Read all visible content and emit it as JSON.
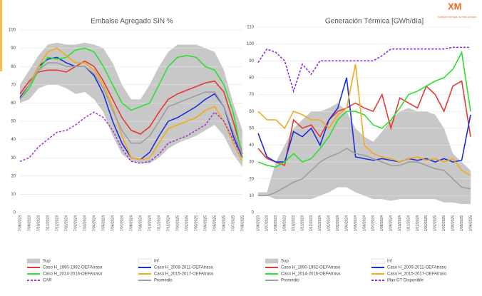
{
  "logo": {
    "name": "XM",
    "tagline": "Somos energía, somos pasión"
  },
  "chart_data": [
    {
      "type": "line",
      "title": "Embalse Agregado SIN %",
      "categories": [
        "7/08/2023",
        "7/09/2023",
        "7/10/2023",
        "7/11/2023",
        "7/12/2023",
        "7/01/2024",
        "7/02/2024",
        "7/03/2024",
        "7/04/2024",
        "7/05/2024",
        "7/06/2024",
        "7/07/2024",
        "7/08/2024",
        "7/09/2024",
        "7/10/2024",
        "7/11/2024",
        "7/12/2024",
        "7/01/2025",
        "7/02/2025",
        "7/03/2025",
        "7/04/2025",
        "7/05/2025",
        "7/06/2025",
        "7/07/2025",
        "7/08/2025"
      ],
      "ylim": [
        0,
        100
      ],
      "yticks": [
        0,
        10,
        20,
        30,
        40,
        50,
        60,
        70,
        80,
        90,
        100
      ],
      "grid": true,
      "series": [
        {
          "name": "Sup",
          "color": "#c8c8c8",
          "style": "area",
          "values": [
            70,
            78,
            86,
            92,
            93,
            92,
            92,
            93,
            92,
            90,
            82,
            70,
            62,
            62,
            70,
            80,
            88,
            92,
            92,
            92,
            90,
            88,
            78,
            60,
            45
          ]
        },
        {
          "name": "Inf",
          "color": "#ffffff",
          "style": "area",
          "values": [
            60,
            62,
            68,
            70,
            70,
            68,
            65,
            66,
            62,
            55,
            42,
            32,
            28,
            27,
            27,
            30,
            35,
            38,
            40,
            42,
            45,
            48,
            42,
            32,
            25
          ]
        },
        {
          "name": "Caso H_1990-1992-OEFAtraso",
          "color": "#e53935",
          "values": [
            65,
            72,
            77,
            78,
            78,
            77,
            80,
            83,
            80,
            72,
            62,
            52,
            45,
            43,
            47,
            55,
            62,
            65,
            67,
            69,
            71,
            72,
            66,
            50,
            32
          ]
        },
        {
          "name": "Caso H_2009-2011-OEFAtraso",
          "color": "#1a2fd6",
          "values": [
            63,
            70,
            80,
            84,
            85,
            82,
            80,
            80,
            75,
            65,
            50,
            38,
            30,
            29,
            33,
            42,
            50,
            52,
            55,
            58,
            62,
            65,
            58,
            42,
            30
          ]
        },
        {
          "name": "Caso H_2014-2016-OEFAtraso",
          "color": "#2ee02e",
          "values": [
            62,
            68,
            78,
            85,
            84,
            85,
            89,
            90,
            88,
            80,
            70,
            60,
            56,
            58,
            60,
            70,
            80,
            85,
            86,
            85,
            80,
            78,
            70,
            55,
            30
          ]
        },
        {
          "name": "Caso H_2015-2017-OEFAtraso",
          "color": "#f2a91c",
          "values": [
            62,
            70,
            80,
            88,
            90,
            86,
            82,
            82,
            78,
            70,
            58,
            42,
            30,
            29,
            30,
            38,
            46,
            48,
            50,
            52,
            56,
            58,
            50,
            38,
            28
          ]
        },
        {
          "name": "CAR",
          "color": "#a23fd0",
          "dash": true,
          "values": [
            28,
            30,
            36,
            40,
            44,
            45,
            48,
            52,
            55,
            52,
            45,
            35,
            28,
            27,
            28,
            32,
            38,
            40,
            42,
            45,
            48,
            55,
            50,
            40,
            30
          ]
        },
        {
          "name": "Promedio",
          "color": "#9e9e9e",
          "values": [
            62,
            70,
            78,
            82,
            82,
            80,
            80,
            80,
            76,
            68,
            56,
            45,
            38,
            38,
            42,
            50,
            58,
            60,
            62,
            64,
            66,
            66,
            58,
            44,
            32
          ]
        }
      ]
    },
    {
      "type": "line",
      "title": "Generación Térmica [GWh/día]",
      "categories": [
        "1/06/2023",
        "1/07/2023",
        "1/08/2023",
        "1/09/2023",
        "1/10/2023",
        "1/11/2023",
        "1/12/2023",
        "1/01/2024",
        "1/02/2024",
        "1/03/2024",
        "1/04/2024",
        "1/05/2024",
        "1/06/2024",
        "1/07/2024",
        "1/08/2024",
        "1/09/2024",
        "1/10/2024",
        "1/11/2024",
        "1/12/2024",
        "1/01/2025",
        "1/02/2025",
        "1/03/2025",
        "1/04/2025",
        "1/05/2025",
        "1/06/2025"
      ],
      "ylim": [
        0,
        110
      ],
      "yticks": [
        0,
        10,
        20,
        30,
        40,
        50,
        60,
        70,
        80,
        90,
        100,
        110
      ],
      "grid": true,
      "series": [
        {
          "name": "Sup",
          "color": "#c8c8c8",
          "style": "area",
          "values": [
            12,
            12,
            30,
            40,
            50,
            55,
            60,
            60,
            62,
            65,
            60,
            50,
            45,
            42,
            48,
            55,
            60,
            62,
            60,
            60,
            58,
            50,
            35,
            30,
            25
          ]
        },
        {
          "name": "Inf",
          "color": "#ffffff",
          "style": "area",
          "values": [
            10,
            10,
            8,
            8,
            8,
            8,
            8,
            10,
            12,
            15,
            15,
            12,
            10,
            8,
            8,
            7,
            8,
            8,
            8,
            8,
            8,
            6,
            6,
            5,
            5
          ]
        },
        {
          "name": "Caso H_1990-1992-OEFAtraso",
          "color": "#e53935",
          "values": [
            38,
            32,
            30,
            28,
            55,
            50,
            52,
            45,
            55,
            60,
            62,
            65,
            62,
            60,
            70,
            50,
            68,
            65,
            62,
            75,
            70,
            60,
            75,
            78,
            45
          ]
        },
        {
          "name": "Caso H_2009-2011-OEFAtraso",
          "color": "#1a2fd6",
          "values": [
            47,
            33,
            30,
            30,
            48,
            45,
            50,
            40,
            55,
            62,
            80,
            33,
            32,
            31,
            32,
            31,
            30,
            32,
            31,
            32,
            30,
            32,
            30,
            31,
            58
          ]
        },
        {
          "name": "Caso H_2014-2016-OEFAtraso",
          "color": "#2ee02e",
          "values": [
            30,
            28,
            27,
            30,
            35,
            30,
            32,
            38,
            45,
            55,
            60,
            60,
            58,
            52,
            50,
            55,
            62,
            70,
            72,
            75,
            78,
            80,
            85,
            95,
            60
          ]
        },
        {
          "name": "Caso H_2015-2017-OEFAtraso",
          "color": "#f2a91c",
          "values": [
            60,
            55,
            55,
            50,
            60,
            58,
            55,
            55,
            50,
            58,
            62,
            88,
            40,
            35,
            33,
            32,
            30,
            32,
            33,
            31,
            32,
            30,
            32,
            25,
            22
          ]
        },
        {
          "name": "Promedio",
          "color": "#9e9e9e",
          "values": [
            10,
            10,
            12,
            15,
            18,
            20,
            25,
            30,
            33,
            35,
            38,
            35,
            34,
            32,
            30,
            28,
            28,
            30,
            30,
            28,
            26,
            25,
            20,
            15,
            14
          ]
        },
        {
          "name": "Max GT Disponible",
          "color": "#8a2be2",
          "dash": true,
          "values": [
            89,
            97,
            95,
            90,
            72,
            88,
            82,
            90,
            90,
            90,
            90,
            90,
            90,
            90,
            93,
            97,
            97,
            97,
            97,
            97,
            97,
            97,
            98,
            98,
            98
          ]
        }
      ]
    }
  ]
}
